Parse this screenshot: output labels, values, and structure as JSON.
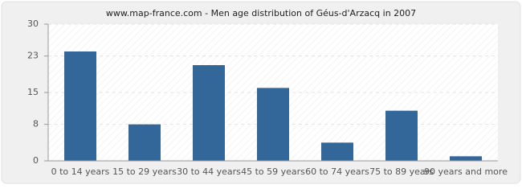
{
  "chart_data": {
    "type": "bar",
    "title": "www.map-france.com - Men age distribution of Géus-d'Arzacq in 2007",
    "categories": [
      "0 to 14 years",
      "15 to 29 years",
      "30 to 44 years",
      "45 to 59 years",
      "60 to 74 years",
      "75 to 89 years",
      "90 years and more"
    ],
    "values": [
      24,
      8,
      21,
      16,
      4,
      11,
      1
    ],
    "color": "#336699",
    "ylim": [
      0,
      30
    ],
    "yticks": [
      0,
      8,
      15,
      23,
      30
    ],
    "grid": true
  }
}
